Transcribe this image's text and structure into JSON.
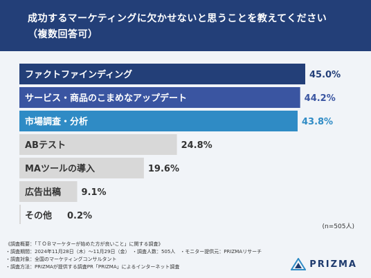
{
  "header": {
    "title_line1": "成功するマーケティングに欠かせないと思うことを教えてください",
    "title_line2": "（複数回答可）"
  },
  "chart_data": {
    "type": "bar",
    "orientation": "horizontal",
    "categories": [
      "ファクトファインディング",
      "サービス・商品のこまめなアップデート",
      "市場調査・分析",
      "ABテスト",
      "MAツールの導入",
      "広告出稿",
      "その他"
    ],
    "values": [
      45.0,
      44.2,
      43.8,
      24.8,
      19.6,
      9.1,
      0.2
    ],
    "value_labels": [
      "45.0%",
      "44.2%",
      "43.8%",
      "24.8%",
      "19.6%",
      "9.1%",
      "0.2%"
    ],
    "bar_colors": [
      "#233f78",
      "#3a55a1",
      "#2f8bc5",
      "#d8d8d8",
      "#d8d8d8",
      "#d8d8d8",
      "#d8d8d8"
    ],
    "label_colors": [
      "#ffffff",
      "#ffffff",
      "#ffffff",
      "#333333",
      "#333333",
      "#333333",
      "#333333"
    ],
    "value_colors": [
      "#233f78",
      "#3a55a1",
      "#2f8bc5",
      "#333333",
      "#333333",
      "#333333",
      "#333333"
    ],
    "xlim": [
      0,
      45.0
    ],
    "legend": "none"
  },
  "n_label": "(n=505人)",
  "notes": [
    "《調査概要：「ＴＯＢマーケターが始めた方が良いこと」に関する調査》",
    "・調査期間：2024年11月28日（木）〜11月29日（金）　・調査人数：505人　・モニター提供元：PRIZMAリサーチ",
    "・調査対象：全国のマーケティングコンサルタント",
    "・調査方法：PRIZMAが提供する調査PR「PRIZMA」によるインターネット調査"
  ],
  "logo": {
    "text": "PRIZMA",
    "icon": "prizma-triangle-icon"
  }
}
